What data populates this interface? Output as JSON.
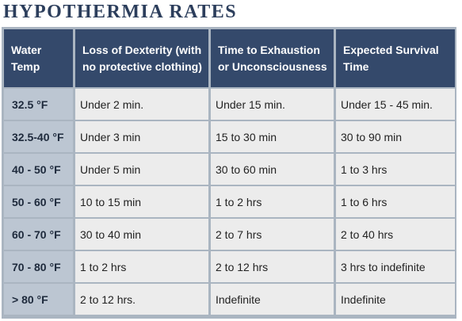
{
  "title": "HYPOTHERMIA RATES",
  "table": {
    "headers": [
      "Water Temp",
      "Loss of Dexterity (with no protective clothing)",
      "Time to Exhaustion or Unconsciousness",
      "Expected Survival Time"
    ],
    "rows": [
      [
        "32.5 °F",
        "Under 2 min.",
        "Under 15 min.",
        "Under 15 - 45 min."
      ],
      [
        "32.5-40 °F",
        "Under 3 min",
        "15 to 30 min",
        "30 to 90 min"
      ],
      [
        "40 - 50 °F",
        "Under 5 min",
        "30 to 60 min",
        "1 to 3 hrs"
      ],
      [
        "50 - 60 °F",
        "10 to 15 min",
        "1 to 2 hrs",
        "1 to 6 hrs"
      ],
      [
        "60 - 70 °F",
        "30 to 40 min",
        "2 to 7 hrs",
        "2 to 40 hrs"
      ],
      [
        "70 - 80 °F",
        "1 to 2 hrs",
        "2 to 12 hrs",
        "3 hrs to indefinite"
      ],
      [
        "> 80 °F",
        "2 to 12 hrs.",
        "Indefinite",
        "Indefinite"
      ]
    ]
  }
}
